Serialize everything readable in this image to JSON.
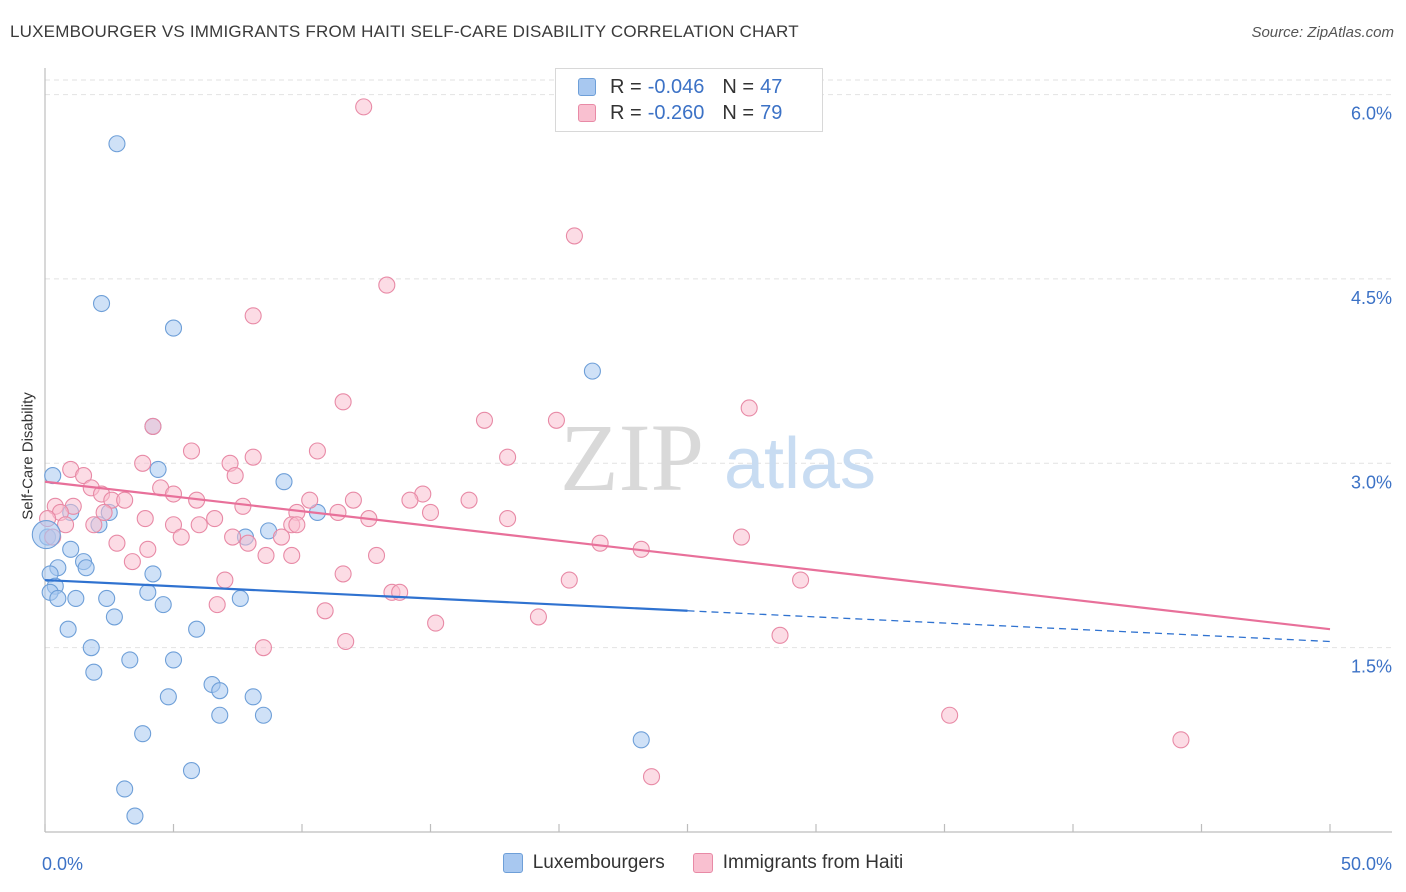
{
  "title": "LUXEMBOURGER VS IMMIGRANTS FROM HAITI SELF-CARE DISABILITY CORRELATION CHART",
  "source": "Source: ZipAtlas.com",
  "watermark": {
    "zip": "ZIP",
    "atlas": "atlas"
  },
  "stats": [
    {
      "r_label": "R =",
      "r_value": "-0.046",
      "n_label": "N =",
      "n_value": "47",
      "color": "#a8c8f0",
      "border": "#6e9fd8"
    },
    {
      "r_label": "R =",
      "r_value": "-0.260",
      "n_label": "N =",
      "n_value": "79",
      "color": "#f9c0d0",
      "border": "#e88aa6"
    }
  ],
  "legend": [
    {
      "label": "Luxembourgers",
      "color": "#a8c8f0",
      "border": "#6e9fd8"
    },
    {
      "label": "Immigrants from Haiti",
      "color": "#f9c0d0",
      "border": "#e88aa6"
    }
  ],
  "chart_data": {
    "type": "scatter",
    "title": "LUXEMBOURGER VS IMMIGRANTS FROM HAITI SELF-CARE DISABILITY CORRELATION CHART",
    "xlabel": "",
    "ylabel": "Self-Care Disability",
    "xlim": [
      0,
      50
    ],
    "ylim": [
      0,
      6.2
    ],
    "x_tick_labels": [
      {
        "value": 0,
        "label": "0.0%"
      },
      {
        "value": 50,
        "label": "50.0%"
      }
    ],
    "x_minor_ticks": [
      0,
      5,
      10,
      15,
      20,
      25,
      30,
      35,
      40,
      45,
      50
    ],
    "y_ticks": [
      {
        "value": 1.5,
        "label": "1.5%"
      },
      {
        "value": 3.0,
        "label": "3.0%"
      },
      {
        "value": 4.5,
        "label": "4.5%"
      },
      {
        "value": 6.0,
        "label": "6.0%"
      }
    ],
    "series": [
      {
        "name": "Luxembourgers",
        "color": "#a8c8f0",
        "stroke": "#6e9fd8",
        "line_color": "#2f72d0",
        "trend": {
          "x0": 0,
          "y0": 2.05,
          "x1": 25,
          "y1": 1.8,
          "x_dash_end": 50,
          "y_dash_end": 1.55
        },
        "points": [
          [
            2.8,
            5.6
          ],
          [
            2.2,
            4.3
          ],
          [
            5,
            4.1
          ],
          [
            21.3,
            3.75
          ],
          [
            4.2,
            3.3
          ],
          [
            4.4,
            2.95
          ],
          [
            9.3,
            2.85
          ],
          [
            10.6,
            2.6
          ],
          [
            2.1,
            2.5
          ],
          [
            1.0,
            2.6
          ],
          [
            2.5,
            2.6
          ],
          [
            0.1,
            2.4
          ],
          [
            7.8,
            2.4
          ],
          [
            8.7,
            2.45
          ],
          [
            0.5,
            2.15
          ],
          [
            1.0,
            2.3
          ],
          [
            1.5,
            2.2
          ],
          [
            1.6,
            2.15
          ],
          [
            0.2,
            2.1
          ],
          [
            0.4,
            2.0
          ],
          [
            4.2,
            2.1
          ],
          [
            0.2,
            1.95
          ],
          [
            0.5,
            1.9
          ],
          [
            1.2,
            1.9
          ],
          [
            2.4,
            1.9
          ],
          [
            4.0,
            1.95
          ],
          [
            4.6,
            1.85
          ],
          [
            7.6,
            1.9
          ],
          [
            2.7,
            1.75
          ],
          [
            0.9,
            1.65
          ],
          [
            5.9,
            1.65
          ],
          [
            1.8,
            1.5
          ],
          [
            3.3,
            1.4
          ],
          [
            5.0,
            1.4
          ],
          [
            1.9,
            1.3
          ],
          [
            6.5,
            1.2
          ],
          [
            6.8,
            1.15
          ],
          [
            4.8,
            1.1
          ],
          [
            8.1,
            1.1
          ],
          [
            6.8,
            0.95
          ],
          [
            8.5,
            0.95
          ],
          [
            3.8,
            0.8
          ],
          [
            23.2,
            0.75
          ],
          [
            5.7,
            0.5
          ],
          [
            3.1,
            0.35
          ],
          [
            3.5,
            0.13
          ],
          [
            0.3,
            2.9
          ]
        ]
      },
      {
        "name": "Immigrants from Haiti",
        "color": "#f9c0d0",
        "stroke": "#e88aa6",
        "line_color": "#e8709a",
        "trend": {
          "x0": 0,
          "y0": 2.85,
          "x1": 50,
          "y1": 1.65
        },
        "points": [
          [
            12.4,
            5.9
          ],
          [
            20.6,
            4.85
          ],
          [
            13.3,
            4.45
          ],
          [
            8.1,
            4.2
          ],
          [
            11.6,
            3.5
          ],
          [
            27.4,
            3.45
          ],
          [
            17.1,
            3.35
          ],
          [
            19.9,
            3.35
          ],
          [
            4.2,
            3.3
          ],
          [
            5.7,
            3.1
          ],
          [
            10.6,
            3.1
          ],
          [
            8.1,
            3.05
          ],
          [
            18.0,
            3.05
          ],
          [
            3.8,
            3.0
          ],
          [
            7.2,
            3.0
          ],
          [
            1.0,
            2.95
          ],
          [
            1.5,
            2.9
          ],
          [
            7.4,
            2.9
          ],
          [
            4.5,
            2.8
          ],
          [
            1.8,
            2.8
          ],
          [
            2.2,
            2.75
          ],
          [
            5.0,
            2.75
          ],
          [
            14.7,
            2.75
          ],
          [
            2.6,
            2.7
          ],
          [
            3.1,
            2.7
          ],
          [
            5.9,
            2.7
          ],
          [
            12.0,
            2.7
          ],
          [
            16.5,
            2.7
          ],
          [
            7.7,
            2.65
          ],
          [
            0.4,
            2.65
          ],
          [
            1.1,
            2.65
          ],
          [
            9.8,
            2.6
          ],
          [
            11.4,
            2.6
          ],
          [
            0.6,
            2.6
          ],
          [
            2.3,
            2.6
          ],
          [
            15.0,
            2.6
          ],
          [
            0.8,
            2.5
          ],
          [
            3.9,
            2.55
          ],
          [
            6.6,
            2.55
          ],
          [
            12.6,
            2.55
          ],
          [
            18.0,
            2.55
          ],
          [
            1.9,
            2.5
          ],
          [
            5.0,
            2.5
          ],
          [
            9.6,
            2.5
          ],
          [
            9.8,
            2.5
          ],
          [
            6.0,
            2.5
          ],
          [
            2.8,
            2.35
          ],
          [
            5.3,
            2.4
          ],
          [
            9.2,
            2.4
          ],
          [
            4.0,
            2.3
          ],
          [
            7.9,
            2.35
          ],
          [
            21.6,
            2.35
          ],
          [
            27.1,
            2.4
          ],
          [
            8.6,
            2.25
          ],
          [
            9.6,
            2.25
          ],
          [
            12.9,
            2.25
          ],
          [
            3.4,
            2.2
          ],
          [
            11.6,
            2.1
          ],
          [
            7.0,
            2.05
          ],
          [
            20.4,
            2.05
          ],
          [
            23.2,
            2.3
          ],
          [
            29.4,
            2.05
          ],
          [
            13.5,
            1.95
          ],
          [
            13.8,
            1.95
          ],
          [
            6.7,
            1.85
          ],
          [
            10.9,
            1.8
          ],
          [
            19.2,
            1.75
          ],
          [
            15.2,
            1.7
          ],
          [
            11.7,
            1.55
          ],
          [
            8.5,
            1.5
          ],
          [
            28.6,
            1.6
          ],
          [
            35.2,
            0.95
          ],
          [
            44.2,
            0.75
          ],
          [
            23.6,
            0.45
          ],
          [
            7.3,
            2.4
          ],
          [
            14.2,
            2.7
          ],
          [
            0.1,
            2.55
          ],
          [
            0.3,
            2.4
          ],
          [
            10.3,
            2.7
          ]
        ]
      }
    ]
  }
}
